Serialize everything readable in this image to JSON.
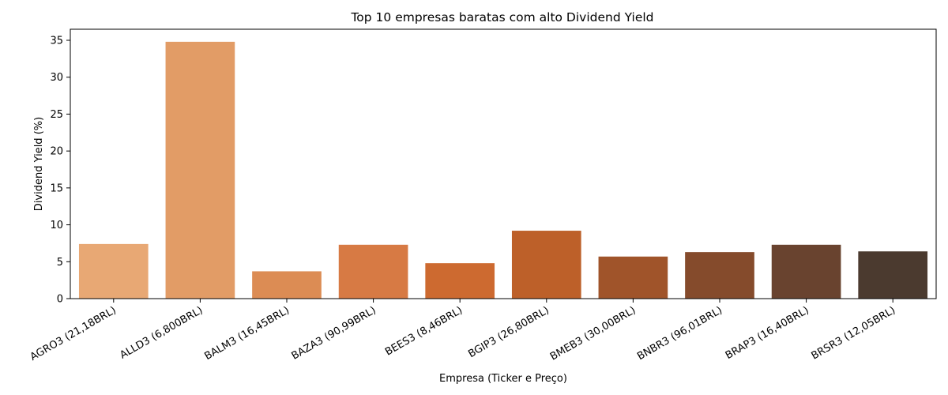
{
  "chart_data": {
    "type": "bar",
    "title": "Top 10 empresas baratas com alto Dividend Yield",
    "xlabel": "Empresa (Ticker e Preço)",
    "ylabel": "Dividend Yield (%)",
    "categories": [
      "AGRO3 (21,18BRL)",
      "ALLD3 (6,800BRL)",
      "BALM3 (16,45BRL)",
      "BAZA3 (90,99BRL)",
      "BEES3 (8,46BRL)",
      "BGIP3 (26,80BRL)",
      "BMEB3 (30,00BRL)",
      "BNBR3 (96,01BRL)",
      "BRAP3 (16,40BRL)",
      "BRSR3 (12,05BRL)"
    ],
    "values": [
      7.4,
      34.8,
      3.7,
      7.3,
      4.8,
      9.2,
      5.7,
      6.3,
      7.3,
      6.4
    ],
    "colors": [
      "#e8a874",
      "#e29c66",
      "#dc8c54",
      "#d77a44",
      "#cd6a30",
      "#bd6029",
      "#a0542a",
      "#854b2c",
      "#69432f",
      "#4b3a2f"
    ],
    "yticks": [
      0,
      5,
      10,
      15,
      20,
      25,
      30,
      35
    ],
    "ylim": [
      0,
      36.5
    ],
    "grid": false,
    "legend": "none"
  }
}
